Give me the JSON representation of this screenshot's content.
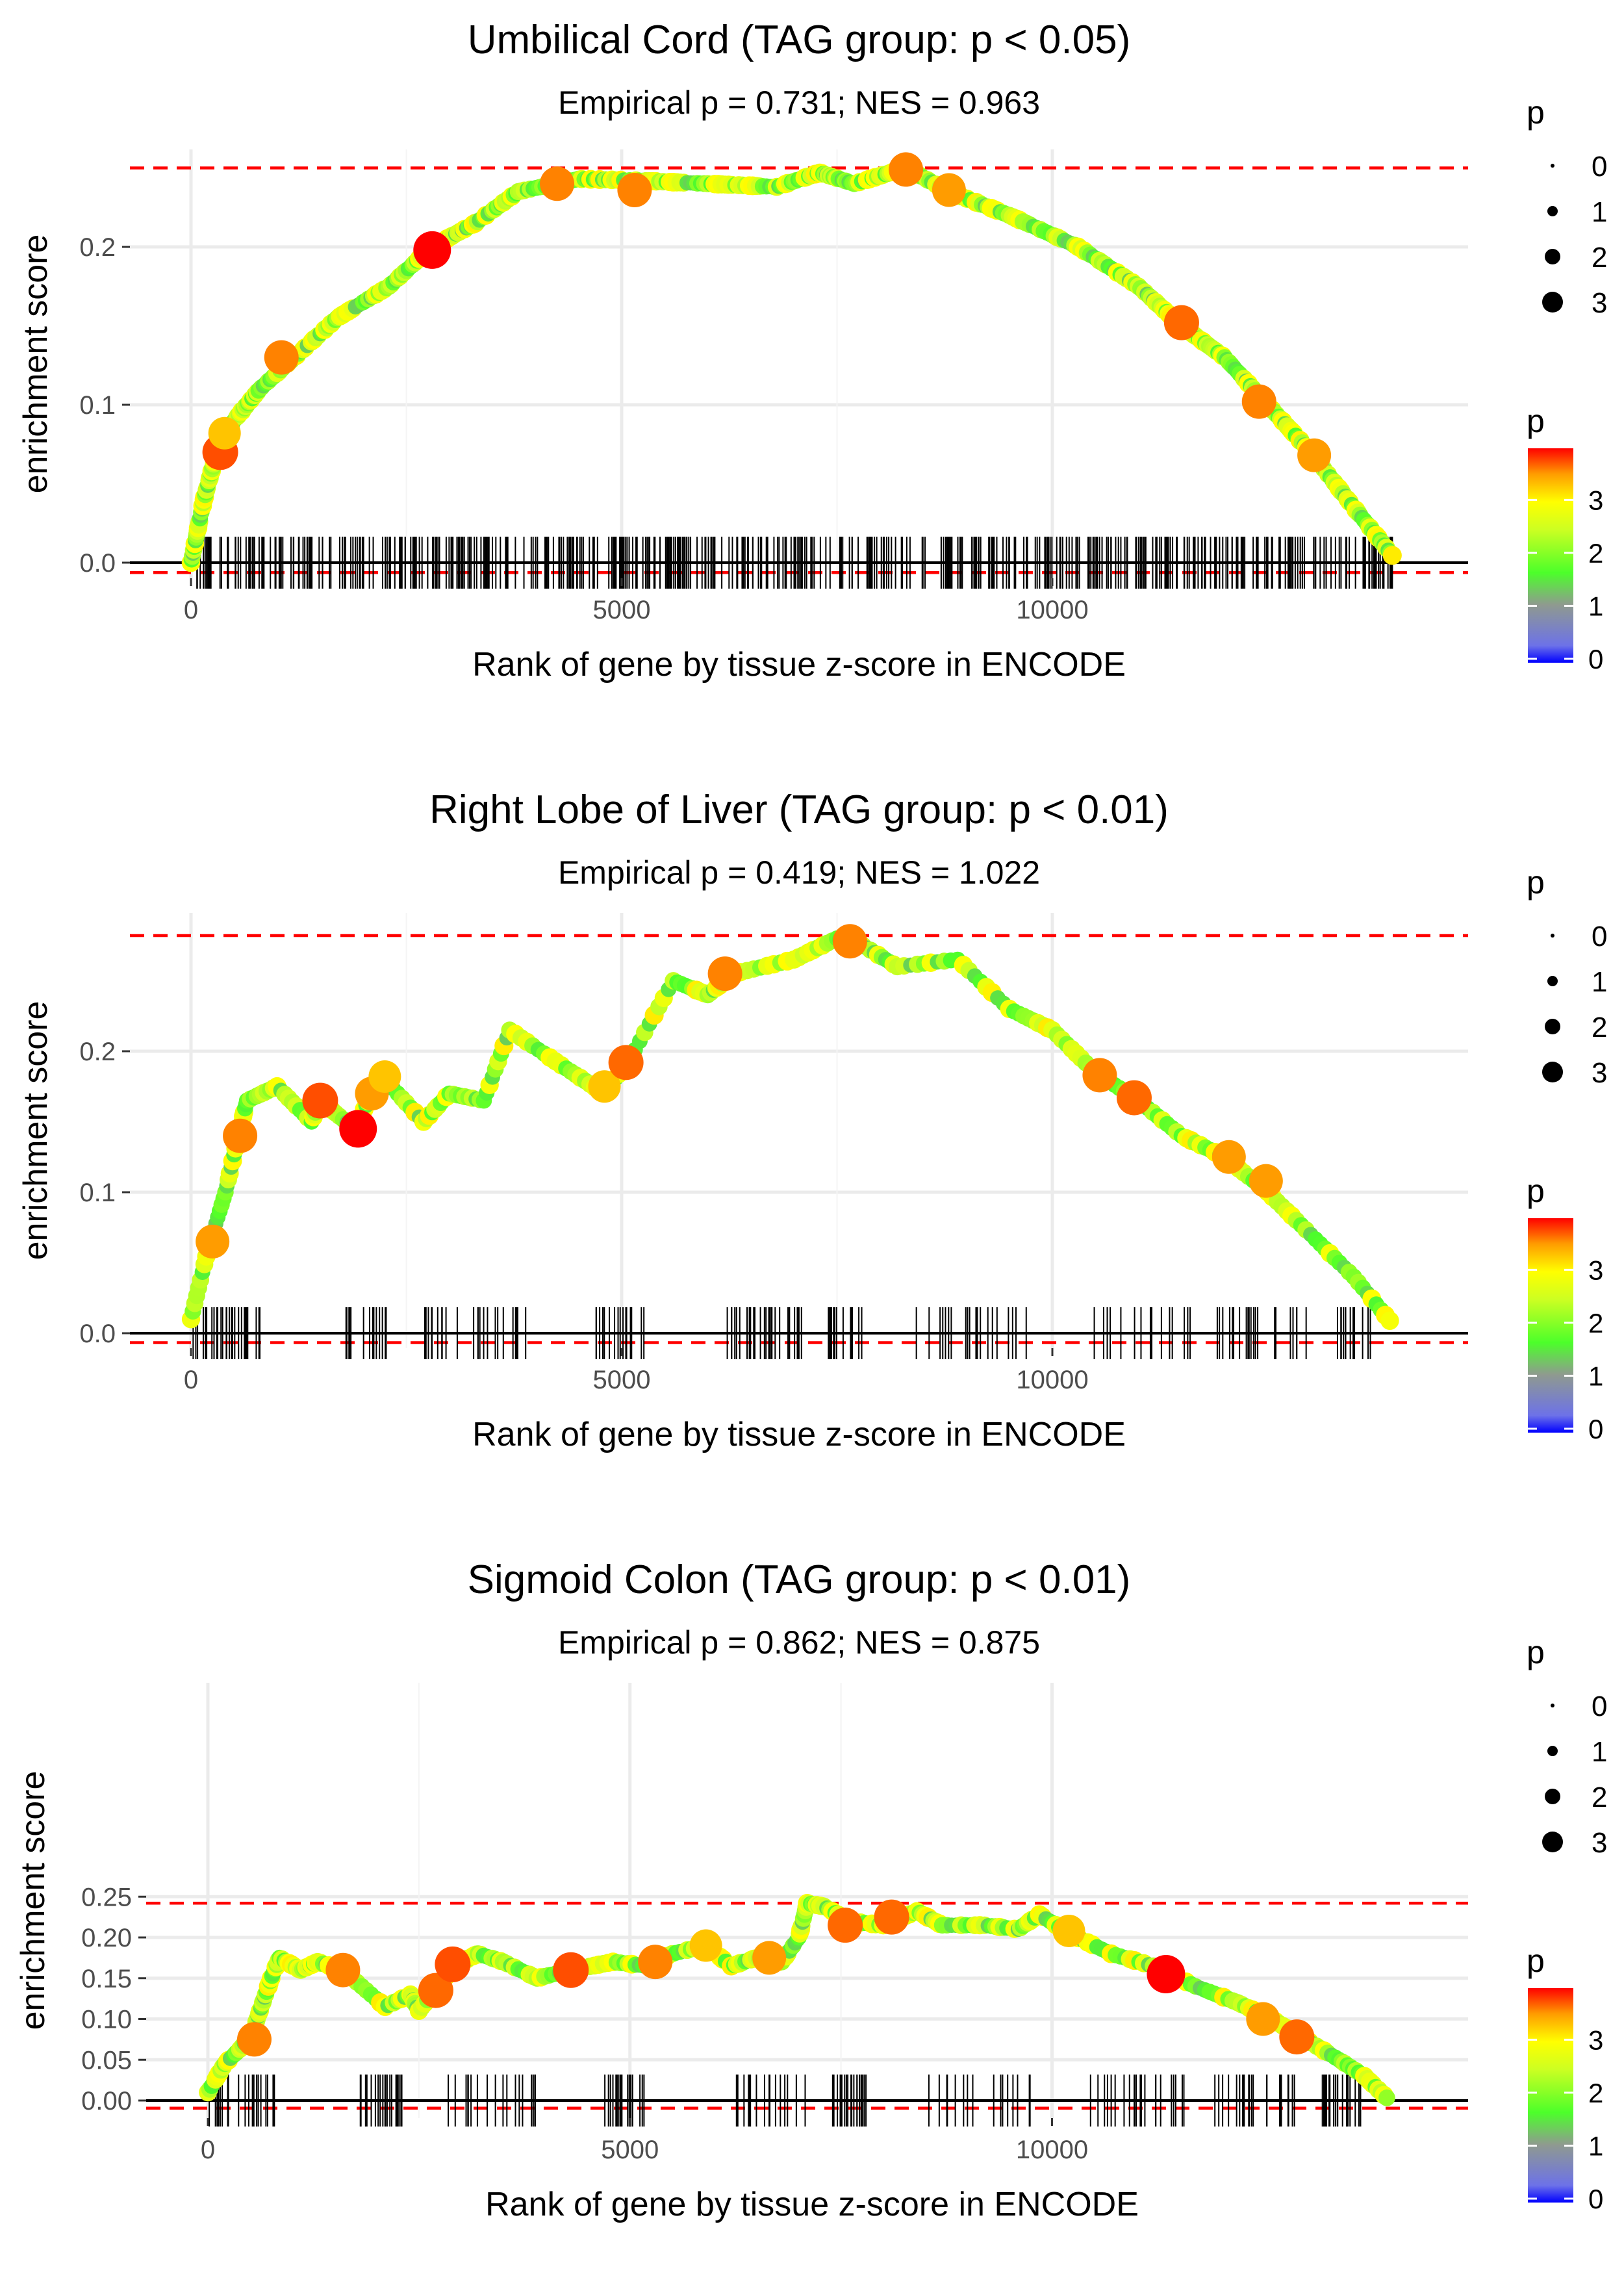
{
  "chart_data": [
    {
      "type": "line",
      "title": "Umbilical Cord (TAG group: p < 0.05)",
      "subtitle": "Empirical p = 0.731; NES = 0.963",
      "xlabel": "Rank of gene by tissue z-score in ENCODE",
      "ylabel": "enrichment score",
      "xlim": [
        -500,
        14500
      ],
      "ylim": [
        -0.01,
        0.262
      ],
      "x_ticks": [
        0,
        5000,
        10000
      ],
      "x_tick_labels": [
        "0",
        "5000",
        "10000"
      ],
      "y_ticks": [
        0.0,
        0.1,
        0.2
      ],
      "y_tick_labels": [
        "0.0",
        "0.1",
        "0.2"
      ],
      "ref_lines": [
        0.25,
        -0.003
      ],
      "x_max": 13970,
      "rug_density": "dense",
      "curve": [
        [
          0,
          0
        ],
        [
          150,
          0.04
        ],
        [
          300,
          0.07
        ],
        [
          500,
          0.09
        ],
        [
          800,
          0.11
        ],
        [
          1200,
          0.13
        ],
        [
          1700,
          0.155
        ],
        [
          2300,
          0.175
        ],
        [
          2800,
          0.2
        ],
        [
          3300,
          0.215
        ],
        [
          3800,
          0.235
        ],
        [
          4500,
          0.243
        ],
        [
          5200,
          0.242
        ],
        [
          6000,
          0.24
        ],
        [
          6800,
          0.238
        ],
        [
          7300,
          0.247
        ],
        [
          7700,
          0.24
        ],
        [
          8300,
          0.25
        ],
        [
          8800,
          0.235
        ],
        [
          9500,
          0.22
        ],
        [
          10300,
          0.2
        ],
        [
          11000,
          0.175
        ],
        [
          11500,
          0.15
        ],
        [
          12000,
          0.13
        ],
        [
          12500,
          0.1
        ],
        [
          13000,
          0.07
        ],
        [
          13500,
          0.035
        ],
        [
          13970,
          0.003
        ]
      ],
      "highlights": [
        [
          340,
          0.07,
          3.5
        ],
        [
          390,
          0.082,
          3.0
        ],
        [
          1050,
          0.13,
          3.3
        ],
        [
          2800,
          0.198,
          3.8
        ],
        [
          4250,
          0.24,
          3.3
        ],
        [
          5150,
          0.236,
          3.3
        ],
        [
          8300,
          0.249,
          3.3
        ],
        [
          8800,
          0.236,
          3.2
        ],
        [
          11500,
          0.152,
          3.4
        ],
        [
          12400,
          0.102,
          3.3
        ],
        [
          13040,
          0.068,
          3.2
        ]
      ],
      "legend": {
        "size_title": "p",
        "size_labels": [
          "0",
          "1",
          "2",
          "3"
        ],
        "color_title": "p",
        "color_labels": [
          "3",
          "2",
          "1",
          "0"
        ]
      }
    },
    {
      "type": "line",
      "title": "Right Lobe of Liver (TAG group: p < 0.01)",
      "subtitle": "Empirical p = 0.419; NES = 1.022",
      "xlabel": "Rank of gene by tissue z-score in ENCODE",
      "ylabel": "enrichment score",
      "xlim": [
        -500,
        14500
      ],
      "ylim": [
        -0.01,
        0.3
      ],
      "x_ticks": [
        0,
        5000,
        10000
      ],
      "x_tick_labels": [
        "0",
        "5000",
        "10000"
      ],
      "y_ticks": [
        0.0,
        0.1,
        0.2
      ],
      "y_tick_labels": [
        "0.0",
        "0.1",
        "0.2"
      ],
      "ref_lines": [
        0.282,
        -0.003
      ],
      "x_max": 13970,
      "rug_density": "medium",
      "curve": [
        [
          0,
          0.01
        ],
        [
          200,
          0.06
        ],
        [
          400,
          0.1
        ],
        [
          550,
          0.14
        ],
        [
          650,
          0.165
        ],
        [
          1000,
          0.175
        ],
        [
          1400,
          0.15
        ],
        [
          1500,
          0.165
        ],
        [
          1900,
          0.145
        ],
        [
          2100,
          0.17
        ],
        [
          2250,
          0.18
        ],
        [
          2700,
          0.15
        ],
        [
          3000,
          0.17
        ],
        [
          3400,
          0.165
        ],
        [
          3700,
          0.215
        ],
        [
          4300,
          0.19
        ],
        [
          4800,
          0.17
        ],
        [
          5100,
          0.195
        ],
        [
          5600,
          0.25
        ],
        [
          6000,
          0.24
        ],
        [
          6300,
          0.255
        ],
        [
          7000,
          0.265
        ],
        [
          7500,
          0.28
        ],
        [
          7800,
          0.275
        ],
        [
          8200,
          0.26
        ],
        [
          8900,
          0.265
        ],
        [
          9500,
          0.23
        ],
        [
          10000,
          0.215
        ],
        [
          10500,
          0.185
        ],
        [
          11000,
          0.165
        ],
        [
          11500,
          0.14
        ],
        [
          12000,
          0.125
        ],
        [
          12500,
          0.1
        ],
        [
          13000,
          0.07
        ],
        [
          13500,
          0.04
        ],
        [
          13970,
          0.005
        ]
      ],
      "highlights": [
        [
          250,
          0.065,
          3.2
        ],
        [
          570,
          0.14,
          3.3
        ],
        [
          1500,
          0.165,
          3.5
        ],
        [
          1940,
          0.145,
          3.8
        ],
        [
          2100,
          0.17,
          3.2
        ],
        [
          2250,
          0.182,
          3.0
        ],
        [
          4800,
          0.175,
          3.0
        ],
        [
          5050,
          0.192,
          3.4
        ],
        [
          6200,
          0.255,
          3.3
        ],
        [
          7650,
          0.278,
          3.3
        ],
        [
          10550,
          0.183,
          3.3
        ],
        [
          10950,
          0.167,
          3.4
        ],
        [
          12050,
          0.125,
          3.2
        ],
        [
          12480,
          0.108,
          3.2
        ]
      ],
      "legend": {
        "size_title": "p",
        "size_labels": [
          "0",
          "1",
          "2",
          "3"
        ],
        "color_title": "p",
        "color_labels": [
          "3",
          "2",
          "1",
          "0"
        ]
      }
    },
    {
      "type": "line",
      "title": "Sigmoid Colon (TAG group: p < 0.01)",
      "subtitle": "Empirical p = 0.862; NES = 0.875",
      "xlabel": "Rank of gene by tissue z-score in ENCODE",
      "ylabel": "enrichment score",
      "xlim": [
        -700,
        14500
      ],
      "ylim": [
        -0.01,
        0.255
      ],
      "x_ticks": [
        0,
        5000,
        10000
      ],
      "x_tick_labels": [
        "0",
        "5000",
        "10000"
      ],
      "y_ticks": [
        0.0,
        0.05,
        0.1,
        0.15,
        0.2,
        0.25
      ],
      "y_tick_labels": [
        "0.00",
        "0.05",
        "0.10",
        "0.15",
        "0.20",
        "0.25"
      ],
      "ref_lines": [
        0.242,
        -0.003
      ],
      "x_max": 14000,
      "rug_density": "medium",
      "curve": [
        [
          0,
          0.01
        ],
        [
          200,
          0.045
        ],
        [
          400,
          0.065
        ],
        [
          550,
          0.09
        ],
        [
          650,
          0.12
        ],
        [
          750,
          0.15
        ],
        [
          850,
          0.175
        ],
        [
          1100,
          0.16
        ],
        [
          1300,
          0.17
        ],
        [
          1600,
          0.16
        ],
        [
          2100,
          0.115
        ],
        [
          2400,
          0.13
        ],
        [
          2500,
          0.11
        ],
        [
          2800,
          0.15
        ],
        [
          3000,
          0.17
        ],
        [
          3200,
          0.18
        ],
        [
          3500,
          0.17
        ],
        [
          3900,
          0.15
        ],
        [
          4300,
          0.16
        ],
        [
          4800,
          0.17
        ],
        [
          5200,
          0.165
        ],
        [
          5500,
          0.18
        ],
        [
          5900,
          0.19
        ],
        [
          6200,
          0.165
        ],
        [
          6500,
          0.175
        ],
        [
          6800,
          0.17
        ],
        [
          7000,
          0.2
        ],
        [
          7100,
          0.242
        ],
        [
          7300,
          0.238
        ],
        [
          7600,
          0.22
        ],
        [
          8000,
          0.215
        ],
        [
          8400,
          0.232
        ],
        [
          8700,
          0.215
        ],
        [
          9200,
          0.215
        ],
        [
          9600,
          0.21
        ],
        [
          9850,
          0.228
        ],
        [
          10200,
          0.205
        ],
        [
          10700,
          0.18
        ],
        [
          11200,
          0.165
        ],
        [
          11700,
          0.14
        ],
        [
          12200,
          0.12
        ],
        [
          12600,
          0.1
        ],
        [
          13000,
          0.075
        ],
        [
          13400,
          0.05
        ],
        [
          13700,
          0.03
        ],
        [
          14000,
          0.0
        ]
      ],
      "highlights": [
        [
          550,
          0.075,
          3.3
        ],
        [
          1600,
          0.16,
          3.3
        ],
        [
          2700,
          0.135,
          3.4
        ],
        [
          2900,
          0.167,
          3.5
        ],
        [
          4300,
          0.16,
          3.5
        ],
        [
          5300,
          0.17,
          3.3
        ],
        [
          5900,
          0.19,
          3.0
        ],
        [
          6650,
          0.175,
          3.2
        ],
        [
          7550,
          0.215,
          3.4
        ],
        [
          8100,
          0.225,
          3.4
        ],
        [
          10200,
          0.208,
          3.0
        ],
        [
          11350,
          0.155,
          3.9
        ],
        [
          12500,
          0.1,
          3.2
        ],
        [
          12900,
          0.078,
          3.4
        ]
      ],
      "legend": {
        "size_title": "p",
        "size_labels": [
          "0",
          "1",
          "2",
          "3"
        ],
        "color_title": "p",
        "color_labels": [
          "3",
          "2",
          "1",
          "0"
        ]
      }
    }
  ]
}
